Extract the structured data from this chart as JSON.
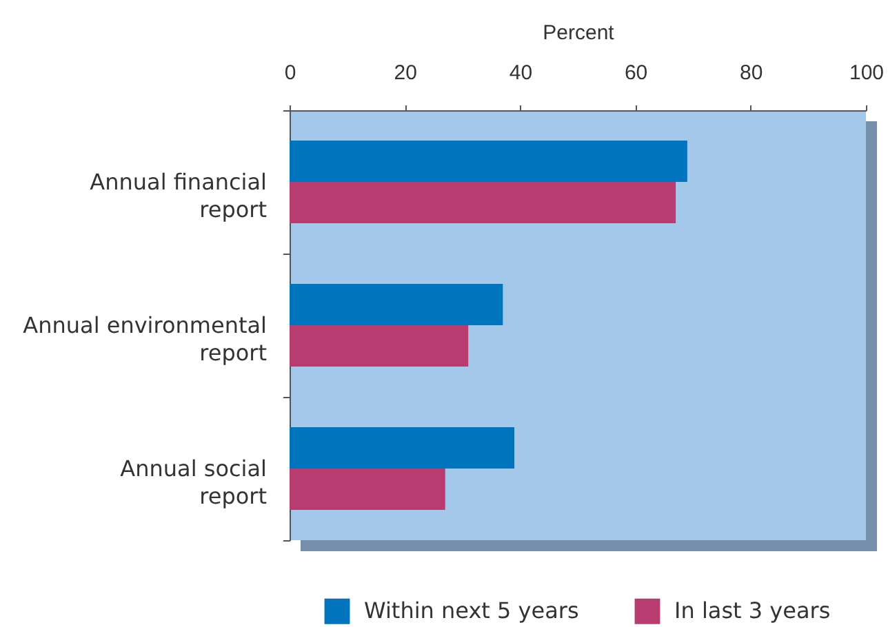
{
  "chart_data": {
    "type": "bar",
    "orientation": "horizontal",
    "xlabel": "Percent",
    "categories": [
      "Annual financial report",
      "Annual environmental report",
      "Annual social report"
    ],
    "series": [
      {
        "name": "Within next 5 years",
        "color": "#0074bd",
        "values": [
          69,
          37,
          39
        ]
      },
      {
        "name": "In last 3 years",
        "color": "#b83c70",
        "values": [
          67,
          31,
          27
        ]
      }
    ],
    "xlim": [
      0,
      100
    ],
    "xticks": [
      0,
      20,
      40,
      60,
      80,
      100
    ],
    "legend": "bottom"
  }
}
